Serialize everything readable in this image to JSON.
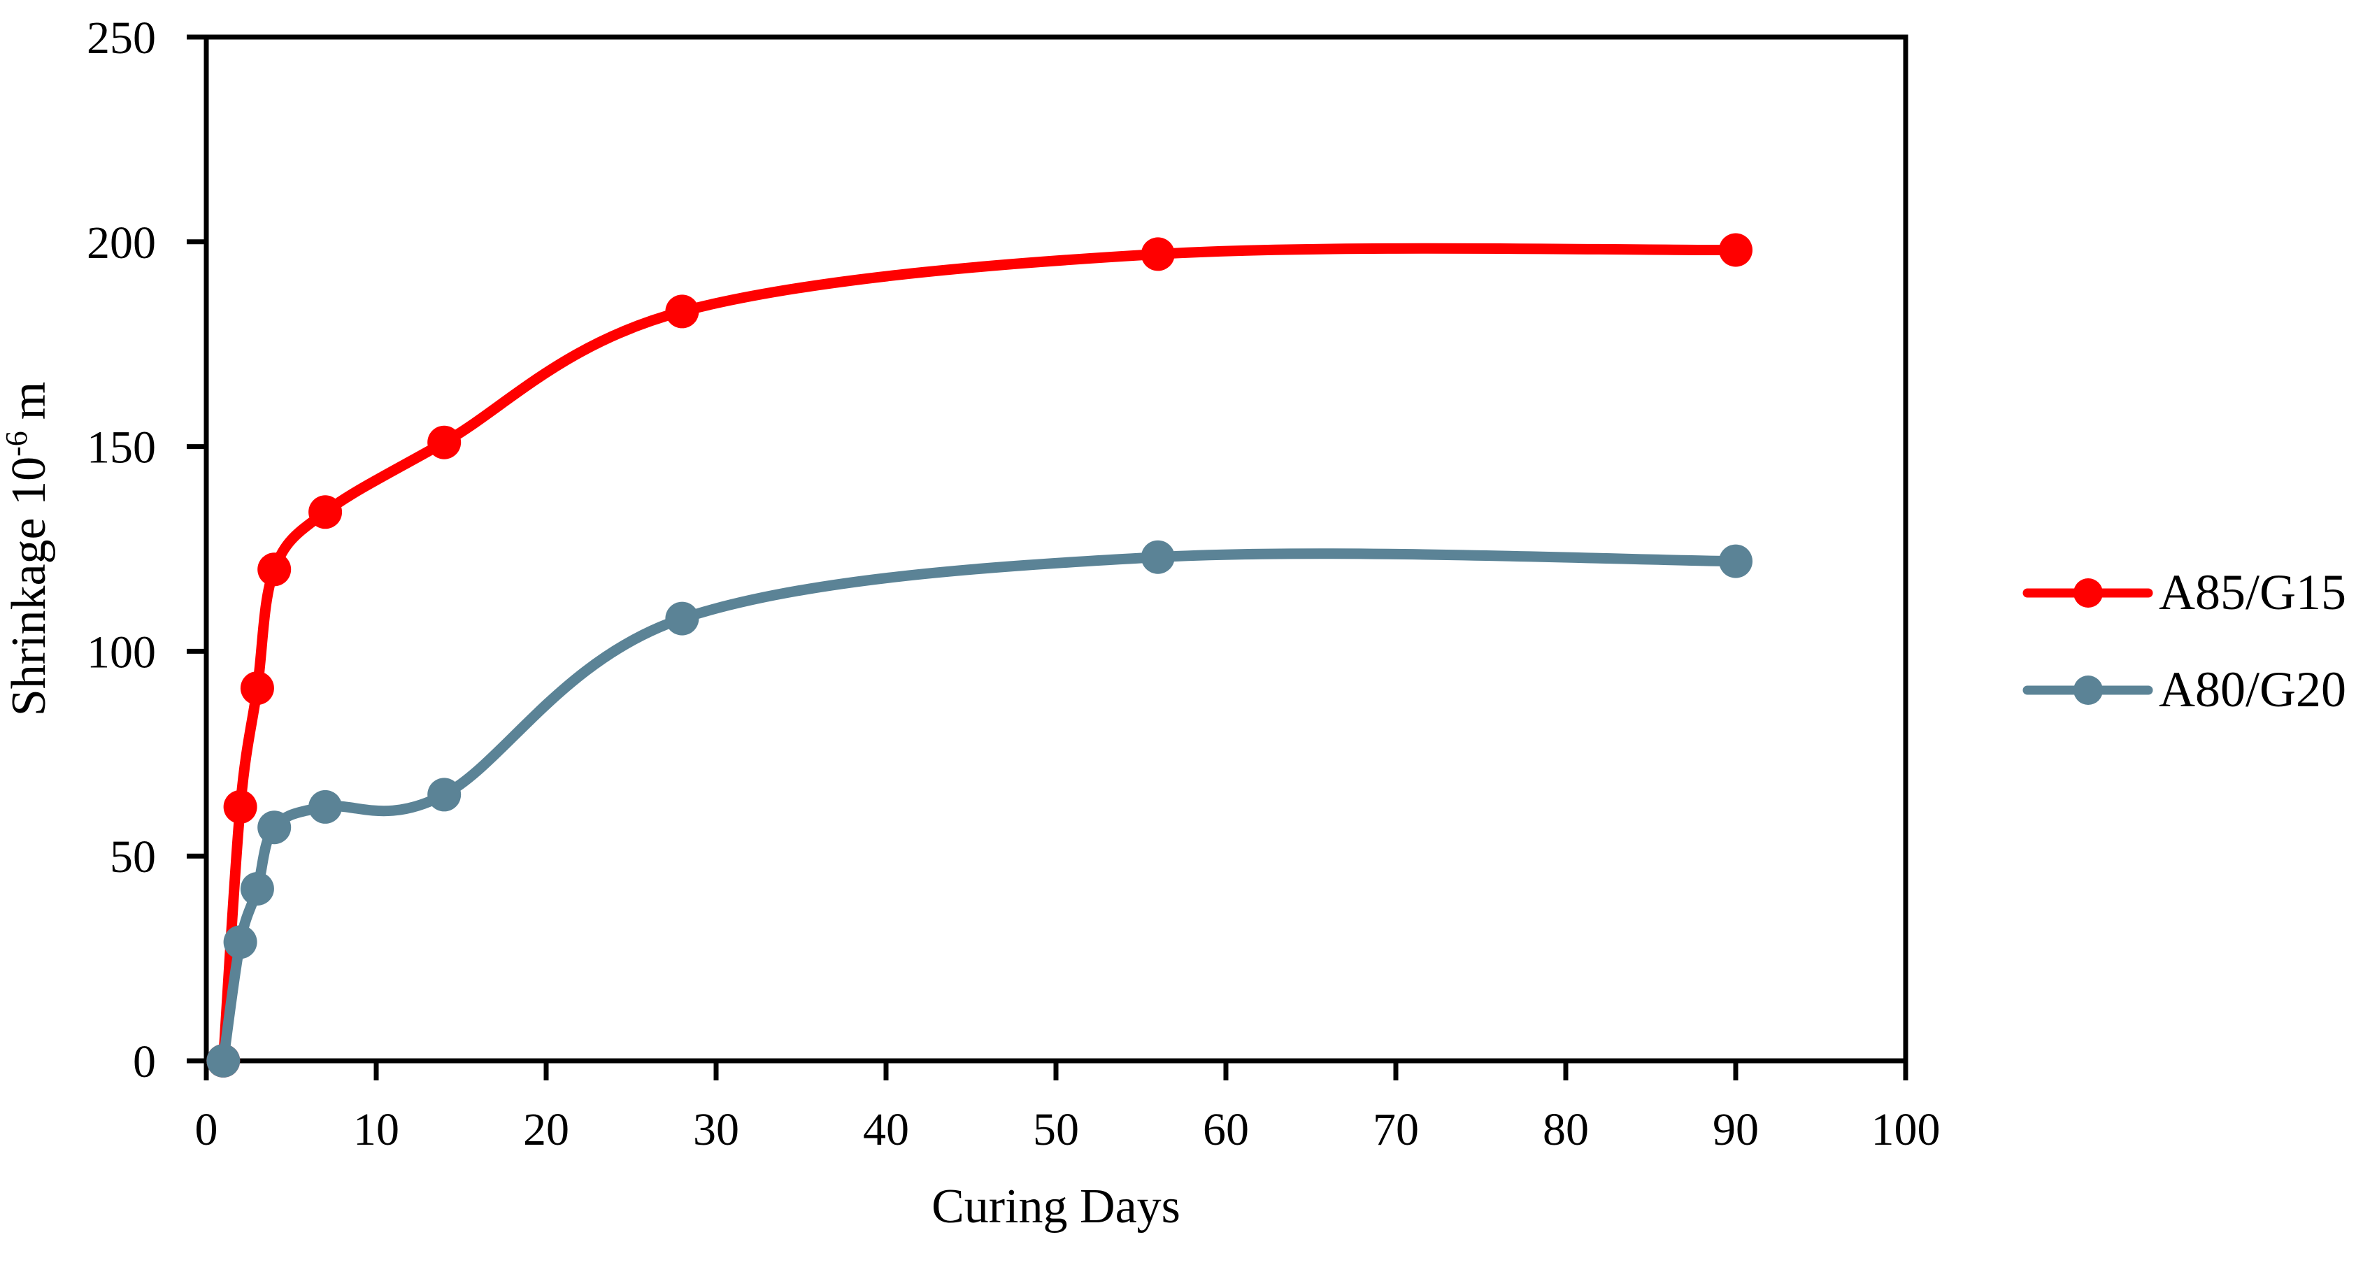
{
  "chart_data": {
    "type": "line",
    "title": "",
    "xlabel": "Curing Days",
    "ylabel": {
      "main": "Shrinkage 10",
      "sup": "-6",
      "unit": "m"
    },
    "x": [
      1,
      2,
      3,
      4,
      7,
      14,
      28,
      56,
      90
    ],
    "series": [
      {
        "name": "A85/G15",
        "color": "#FF0000",
        "values": [
          0,
          62,
          91,
          120,
          134,
          151,
          183,
          197,
          198
        ]
      },
      {
        "name": "A80/G20",
        "color": "#5B8396",
        "values": [
          0,
          29,
          42,
          57,
          62,
          65,
          108,
          123,
          122
        ]
      }
    ],
    "xlim": [
      0,
      100
    ],
    "ylim": [
      0,
      250
    ],
    "xticks": [
      0,
      10,
      20,
      30,
      40,
      50,
      60,
      70,
      80,
      90,
      100
    ],
    "yticks": [
      0,
      50,
      100,
      150,
      200,
      250
    ],
    "grid": false,
    "smooth": true,
    "marker": "circle",
    "legend_position": "right",
    "axis_color": "#000000",
    "background": "#FFFFFF"
  }
}
